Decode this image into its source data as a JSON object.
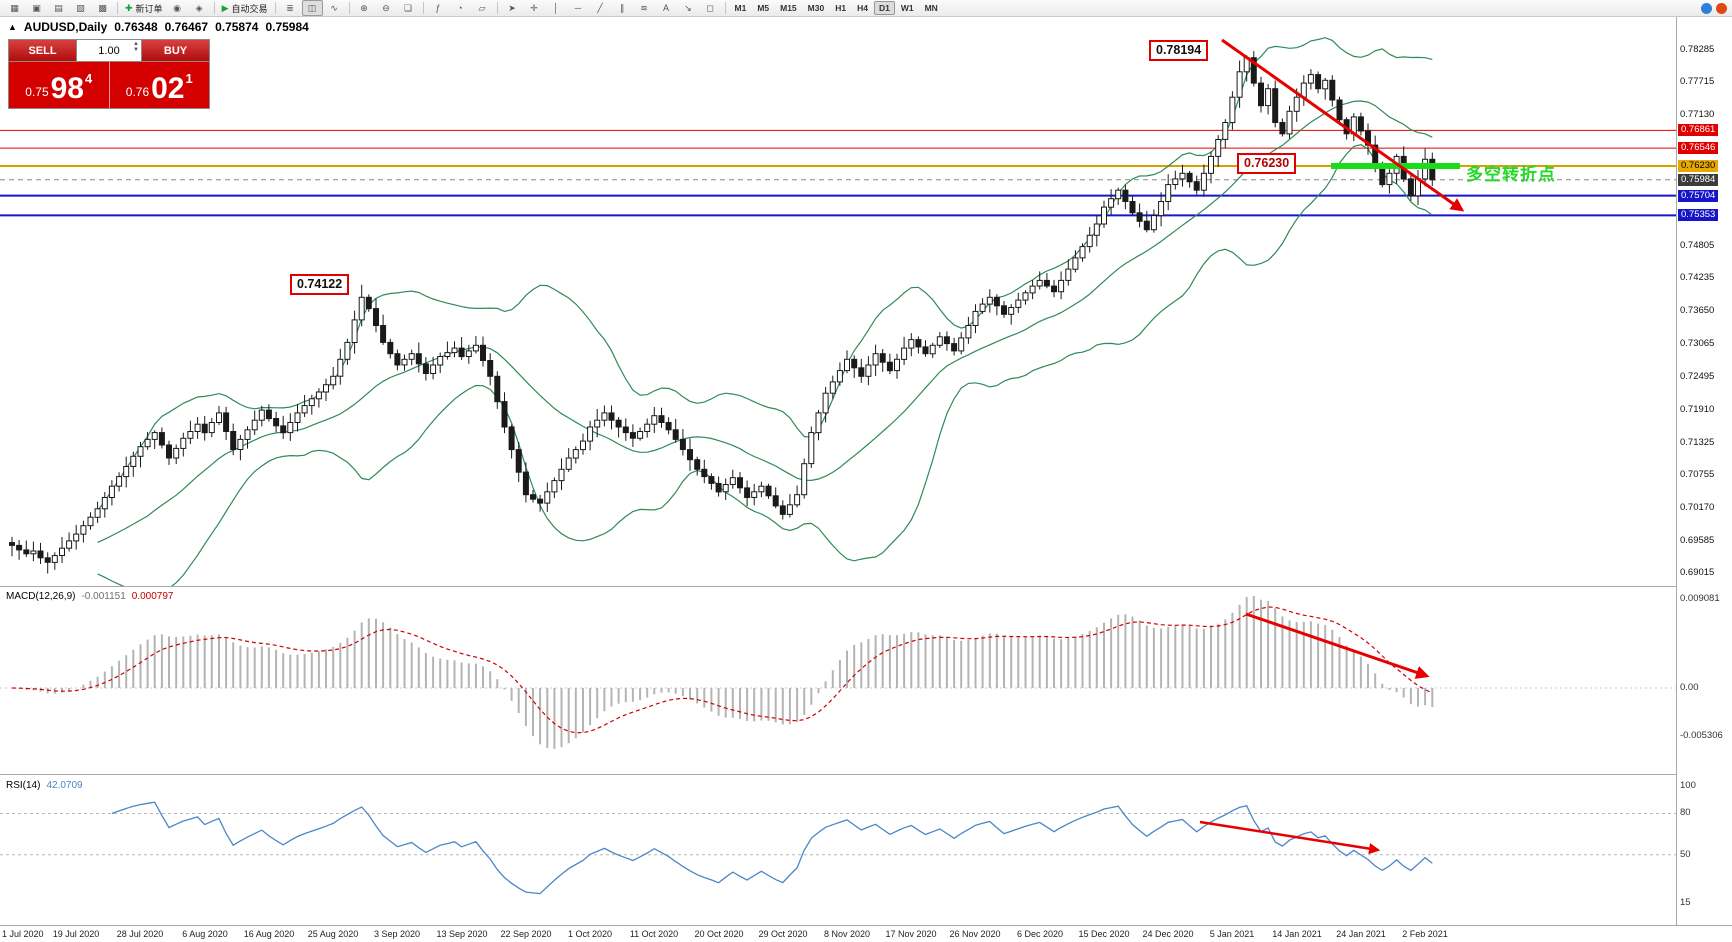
{
  "toolbar": {
    "items": [
      {
        "n": "new-chart-icon",
        "g": "▦"
      },
      {
        "n": "profiles-icon",
        "g": "▣"
      },
      {
        "n": "market-watch-icon",
        "g": "▤"
      },
      {
        "n": "navigator-icon",
        "g": "▧"
      },
      {
        "n": "terminal-icon",
        "g": "▩"
      },
      {
        "sep": 1
      },
      {
        "n": "new-order-button",
        "g": "✚",
        "gc": "#18a030",
        "label": "新订单"
      },
      {
        "n": "mql5-community-icon",
        "g": "◉"
      },
      {
        "n": "alerts-icon",
        "g": "◈"
      },
      {
        "sep": 1
      },
      {
        "n": "auto-trading-button",
        "g": "▶",
        "gc": "#18a030",
        "label": "自动交易"
      },
      {
        "sep": 1
      },
      {
        "n": "bar-chart-icon",
        "g": "≣"
      },
      {
        "n": "candlestick-chart-icon",
        "g": "◫",
        "active": 1
      },
      {
        "n": "line-chart-icon",
        "g": "∿"
      },
      {
        "sep": 1
      },
      {
        "n": "zoom-in-icon",
        "g": "⊕"
      },
      {
        "n": "zoom-out-icon",
        "g": "⊖"
      },
      {
        "n": "tile-windows-icon",
        "g": "❏"
      },
      {
        "sep": 1
      },
      {
        "n": "indicators-icon",
        "g": "ƒ"
      },
      {
        "n": "period-settings-icon",
        "g": "◔"
      },
      {
        "n": "templates-icon",
        "g": "▱"
      },
      {
        "sep": 1
      },
      {
        "n": "cursor-icon",
        "g": "➤"
      },
      {
        "n": "crosshair-icon",
        "g": "✛"
      },
      {
        "n": "vertical-line-icon",
        "g": "│"
      },
      {
        "n": "horizontal-line-icon",
        "g": "─"
      },
      {
        "n": "trendline-icon",
        "g": "╱"
      },
      {
        "n": "channel-icon",
        "g": "∥"
      },
      {
        "n": "fibonacci-icon",
        "g": "≋"
      },
      {
        "n": "text-label-icon",
        "g": "A"
      },
      {
        "n": "arrow-object-icon",
        "g": "↘"
      },
      {
        "n": "shapes-icon",
        "g": "◻"
      },
      {
        "sep": 1
      },
      {
        "tf": "M1"
      },
      {
        "tf": "M5"
      },
      {
        "tf": "M15"
      },
      {
        "tf": "M30"
      },
      {
        "tf": "H1"
      },
      {
        "tf": "H4"
      },
      {
        "tf": "D1",
        "active": 1
      },
      {
        "tf": "W1"
      },
      {
        "tf": "MN"
      }
    ],
    "right": [
      {
        "n": "quotes-status-icon",
        "bg": "#2f7fd6"
      },
      {
        "n": "connection-status-icon",
        "bg": "#e04810"
      }
    ]
  },
  "symbol_info": {
    "collapse_glyph": "▲",
    "title": "AUDUSD,Daily",
    "open": "0.76348",
    "high": "0.76467",
    "low": "0.75874",
    "close": "0.75984"
  },
  "one_click": {
    "sell_label": "SELL",
    "buy_label": "BUY",
    "volume": "1.00",
    "sell_small": "0.75",
    "sell_big": "98",
    "sell_sup": "4",
    "buy_small": "0.76",
    "buy_big": "02",
    "buy_sup": "1"
  },
  "annotations": {
    "peak": "0.78194",
    "pivot": "0.76230",
    "aug_peak": "0.74122",
    "turning_point": "多空转折点"
  },
  "chart_data": {
    "type": "candlestick",
    "symbol": "AUDUSD",
    "period": "Daily",
    "ylim": [
      0.6878,
      0.78872
    ],
    "x_labels": [
      "1 Jul 2020",
      "19 Jul 2020",
      "28 Jul 2020",
      "6 Aug 2020",
      "16 Aug 2020",
      "25 Aug 2020",
      "3 Sep 2020",
      "13 Sep 2020",
      "22 Sep 2020",
      "1 Oct 2020",
      "11 Oct 2020",
      "20 Oct 2020",
      "29 Oct 2020",
      "8 Nov 2020",
      "17 Nov 2020",
      "26 Nov 2020",
      "6 Dec 2020",
      "15 Dec 2020",
      "24 Dec 2020",
      "5 Jan 2021",
      "14 Jan 2021",
      "24 Jan 2021",
      "2 Feb 2021"
    ],
    "candles_per_label": 9,
    "first_open": 0.6955,
    "closes": [
      0.695,
      0.6942,
      0.6935,
      0.694,
      0.6928,
      0.692,
      0.6932,
      0.6945,
      0.6958,
      0.697,
      0.6985,
      0.7,
      0.7015,
      0.7035,
      0.7055,
      0.7072,
      0.709,
      0.7108,
      0.7125,
      0.7138,
      0.715,
      0.7128,
      0.7105,
      0.7122,
      0.714,
      0.7152,
      0.7165,
      0.715,
      0.7168,
      0.7185,
      0.7152,
      0.712,
      0.7138,
      0.7155,
      0.7172,
      0.719,
      0.7175,
      0.7162,
      0.715,
      0.7168,
      0.7185,
      0.7198,
      0.721,
      0.7222,
      0.7235,
      0.725,
      0.728,
      0.731,
      0.735,
      0.739,
      0.737,
      0.734,
      0.731,
      0.729,
      0.727,
      0.728,
      0.729,
      0.7272,
      0.7255,
      0.727,
      0.7285,
      0.7292,
      0.73,
      0.7285,
      0.7295,
      0.7305,
      0.7278,
      0.725,
      0.7205,
      0.716,
      0.712,
      0.708,
      0.704,
      0.7032,
      0.7025,
      0.7045,
      0.7065,
      0.7085,
      0.7105,
      0.712,
      0.7135,
      0.716,
      0.7172,
      0.7185,
      0.7172,
      0.716,
      0.715,
      0.714,
      0.7152,
      0.7165,
      0.718,
      0.7168,
      0.7155,
      0.7138,
      0.712,
      0.7102,
      0.7085,
      0.7072,
      0.706,
      0.7045,
      0.7058,
      0.707,
      0.7052,
      0.7035,
      0.7045,
      0.7055,
      0.7038,
      0.702,
      0.7005,
      0.7022,
      0.704,
      0.7095,
      0.715,
      0.7185,
      0.722,
      0.724,
      0.726,
      0.728,
      0.7265,
      0.725,
      0.727,
      0.729,
      0.7275,
      0.726,
      0.728,
      0.73,
      0.7315,
      0.7302,
      0.729,
      0.7305,
      0.732,
      0.7308,
      0.7295,
      0.7318,
      0.734,
      0.7365,
      0.7378,
      0.739,
      0.7375,
      0.736,
      0.7372,
      0.7385,
      0.7398,
      0.741,
      0.742,
      0.741,
      0.74,
      0.742,
      0.744,
      0.746,
      0.748,
      0.75,
      0.752,
      0.755,
      0.7565,
      0.758,
      0.756,
      0.754,
      0.7525,
      0.751,
      0.7535,
      0.756,
      0.759,
      0.76,
      0.761,
      0.7595,
      0.758,
      0.761,
      0.764,
      0.767,
      0.77,
      0.7745,
      0.779,
      0.7815,
      0.777,
      0.773,
      0.776,
      0.77,
      0.768,
      0.772,
      0.7745,
      0.777,
      0.7785,
      0.776,
      0.7775,
      0.774,
      0.7705,
      0.768,
      0.771,
      0.7685,
      0.766,
      0.762,
      0.759,
      0.761,
      0.764,
      0.76,
      0.757,
      0.76,
      0.76348,
      0.75984
    ],
    "last_ohlc": [
      0.76348,
      0.76467,
      0.75874,
      0.75984
    ],
    "forced_highs": {
      "49": 0.74122,
      "173": 0.78194
    },
    "hlines": [
      {
        "price": 0.76861,
        "color": "#e00000",
        "width": 1
      },
      {
        "price": 0.76546,
        "color": "#e00000",
        "width": 1
      },
      {
        "price": 0.7623,
        "color": "#d8a000",
        "width": 2
      },
      {
        "price": 0.75984,
        "color": "#888888",
        "width": 1,
        "dash": true
      },
      {
        "price": 0.75704,
        "color": "#1616c8",
        "width": 2
      },
      {
        "price": 0.75353,
        "color": "#1616c8",
        "width": 2
      }
    ],
    "green_line": {
      "price": 0.7623,
      "color": "#1bdc1b"
    },
    "price_scale": [
      {
        "label": "0.78285",
        "type": "plain"
      },
      {
        "label": "0.77715",
        "type": "plain"
      },
      {
        "label": "0.77130",
        "type": "plain"
      },
      {
        "label": "0.76861",
        "type": "red"
      },
      {
        "label": "0.76546",
        "type": "red"
      },
      {
        "label": "0.76230",
        "type": "gold"
      },
      {
        "label": "0.75984",
        "type": "current"
      },
      {
        "label": "0.75704",
        "type": "blue"
      },
      {
        "label": "0.75353",
        "type": "blue"
      },
      {
        "label": "0.74805",
        "type": "plain"
      },
      {
        "label": "0.74235",
        "type": "plain"
      },
      {
        "label": "0.73650",
        "type": "plain"
      },
      {
        "label": "0.73065",
        "type": "plain"
      },
      {
        "label": "0.72495",
        "type": "plain"
      },
      {
        "label": "0.71910",
        "type": "plain"
      },
      {
        "label": "0.71325",
        "type": "plain"
      },
      {
        "label": "0.70755",
        "type": "plain"
      },
      {
        "label": "0.70170",
        "type": "plain"
      },
      {
        "label": "0.69585",
        "type": "plain"
      },
      {
        "label": "0.69015",
        "type": "plain"
      }
    ],
    "indicators": {
      "bollinger": {
        "period": 20,
        "deviation": 2,
        "color": "#2e8b57"
      },
      "macd": {
        "label": "MACD(12,26,9)",
        "value": "-0.001151",
        "signal_value": "0.000797",
        "scale_top": "0.009081",
        "scale_zero": "0.00",
        "scale_bottom": "-0.005306",
        "hist_color": "#b4b4b4",
        "signal_color": "#d00000"
      },
      "rsi": {
        "label": "RSI(14)",
        "value": "42.0709",
        "color": "#4a86c8",
        "scale_labels": [
          "100",
          "80",
          "50",
          "15"
        ],
        "levels": [
          80,
          50
        ]
      }
    }
  }
}
